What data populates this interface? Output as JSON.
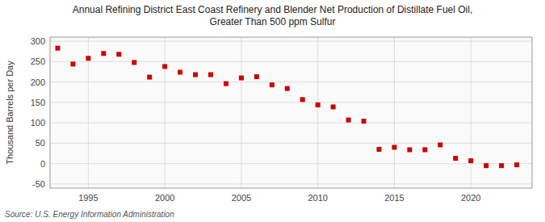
{
  "chart_data": {
    "type": "scatter",
    "title": "Annual Refining District East Coast Refinery and Blender Net Production of Distillate Fuel Oil,\nGreater Than 500 ppm Sulfur",
    "y_label": "Thousand Barrels per Day",
    "annotations": [
      "Source: U.S. Energy Information Administration"
    ],
    "x": [
      1993,
      1994,
      1995,
      1996,
      1997,
      1998,
      1999,
      2000,
      2001,
      2002,
      2003,
      2004,
      2005,
      2006,
      2007,
      2008,
      2009,
      2010,
      2011,
      2012,
      2013,
      2014,
      2015,
      2016,
      2017,
      2018,
      2019,
      2020,
      2021,
      2022,
      2023
    ],
    "values": [
      283,
      244,
      258,
      270,
      268,
      248,
      212,
      238,
      224,
      218,
      218,
      196,
      210,
      213,
      193,
      184,
      157,
      144,
      139,
      107,
      104,
      35,
      40,
      34,
      34,
      46,
      13,
      7,
      -5,
      -5,
      -3
    ],
    "color": "#cc0000",
    "marker": "square",
    "xlim": [
      1992.5,
      2024
    ],
    "xticks": [
      1995,
      2000,
      2005,
      2010,
      2015,
      2020
    ],
    "ylim": [
      -60,
      310
    ],
    "yticks": [
      -50,
      0,
      50,
      100,
      150,
      200,
      250,
      300
    ],
    "grid": true
  }
}
